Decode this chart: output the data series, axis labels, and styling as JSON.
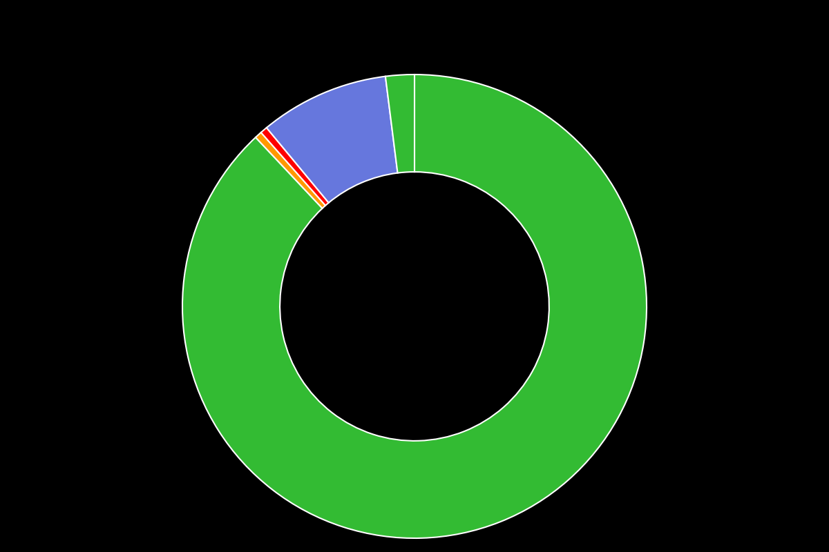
{
  "slices": [
    {
      "label": "",
      "value": 88.0,
      "color": "#33bb33"
    },
    {
      "label": "",
      "value": 0.5,
      "color": "#ff9900"
    },
    {
      "label": "",
      "value": 0.5,
      "color": "#ff0000"
    },
    {
      "label": "",
      "value": 9.0,
      "color": "#6677dd"
    },
    {
      "label": "",
      "value": 2.0,
      "color": "#33bb33"
    }
  ],
  "background_color": "#000000",
  "donut_width": 0.42,
  "startangle": 90,
  "legend_colors": [
    "#33bb33",
    "#ff9900",
    "#ff0000",
    "#6677dd"
  ]
}
